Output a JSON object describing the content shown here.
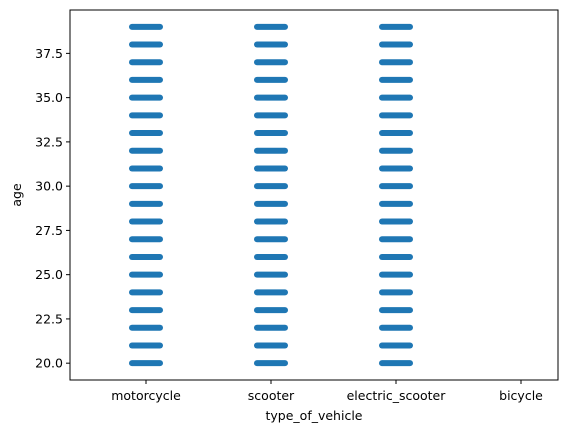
{
  "chart_data": {
    "type": "scatter",
    "title": "",
    "xlabel": "type_of_vehicle",
    "ylabel": "age",
    "categories": [
      "motorcycle",
      "scooter",
      "electric_scooter",
      "bicycle"
    ],
    "ylim": [
      19.05,
      39.95
    ],
    "yticks": [
      20.0,
      22.5,
      25.0,
      27.5,
      30.0,
      32.5,
      35.0,
      37.5
    ],
    "ytick_labels": [
      "20.0",
      "22.5",
      "25.0",
      "27.5",
      "30.0",
      "32.5",
      "35.0",
      "37.5"
    ],
    "series": [
      {
        "color": "#1f77b4",
        "points": [
          {
            "category": "motorcycle",
            "ages": [
              20,
              21,
              22,
              23,
              24,
              25,
              26,
              27,
              28,
              29,
              30,
              31,
              32,
              33,
              34,
              35,
              36,
              37,
              38,
              39
            ]
          },
          {
            "category": "scooter",
            "ages": [
              20,
              21,
              22,
              23,
              24,
              25,
              26,
              27,
              28,
              29,
              30,
              31,
              32,
              33,
              34,
              35,
              36,
              37,
              38,
              39
            ]
          },
          {
            "category": "electric_scooter",
            "ages": [
              20,
              21,
              22,
              23,
              24,
              25,
              26,
              27,
              28,
              29,
              30,
              31,
              32,
              33,
              34,
              35,
              36,
              37,
              38,
              39
            ]
          },
          {
            "category": "bicycle",
            "ages": []
          }
        ]
      }
    ],
    "grid": false,
    "legend": "none"
  }
}
